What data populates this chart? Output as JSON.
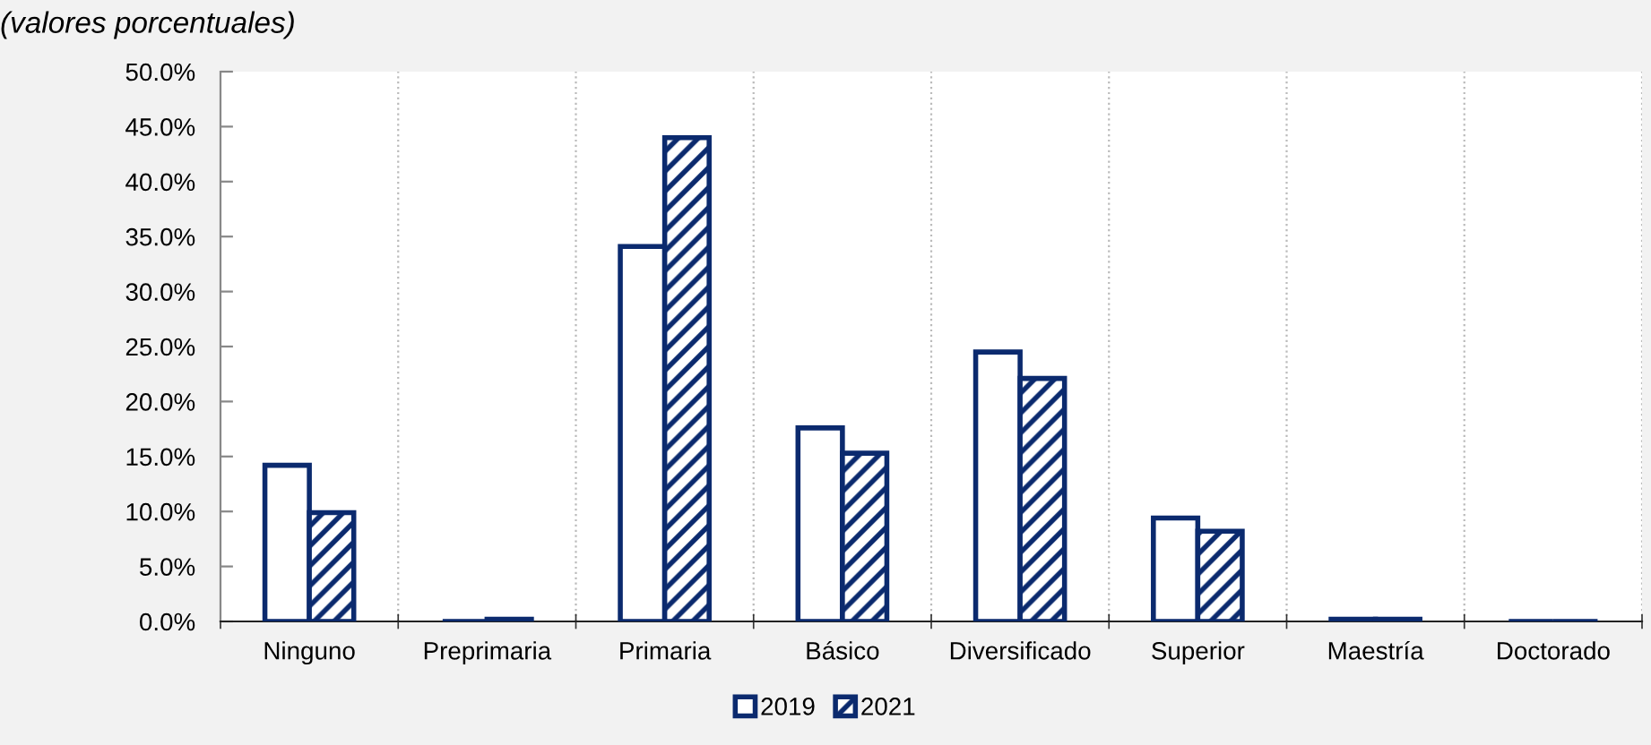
{
  "chart_data": {
    "type": "bar",
    "title": "(valores porcentuales)",
    "categories": [
      "Ninguno",
      "Preprimaria",
      "Primaria",
      "Básico",
      "Diversificado",
      "Superior",
      "Maestría",
      "Doctorado"
    ],
    "series": [
      {
        "name": "2019",
        "color": "#0b2a6e",
        "values": [
          14.2,
          0,
          34.1,
          17.6,
          24.5,
          9.4,
          0.2,
          0
        ]
      },
      {
        "name": "2021",
        "color": "#0b2a6e",
        "values": [
          9.9,
          0.2,
          44.0,
          15.3,
          22.1,
          8.2,
          0.2,
          0
        ]
      }
    ],
    "ylim": [
      0,
      50
    ],
    "yticks": [
      {
        "value": 0,
        "label": "0.0%"
      },
      {
        "value": 5,
        "label": "5.0%"
      },
      {
        "value": 10,
        "label": "10.0%"
      },
      {
        "value": 15,
        "label": "15.0%"
      },
      {
        "value": 20,
        "label": "20.0%"
      },
      {
        "value": 25,
        "label": "25.0%"
      },
      {
        "value": 30,
        "label": "30.0%"
      },
      {
        "value": 35,
        "label": "35.0%"
      },
      {
        "value": 40,
        "label": "40.0%"
      },
      {
        "value": 45,
        "label": "45.0%"
      },
      {
        "value": 50,
        "label": "50.0%"
      }
    ],
    "grid": "x",
    "legend": "bottom"
  }
}
